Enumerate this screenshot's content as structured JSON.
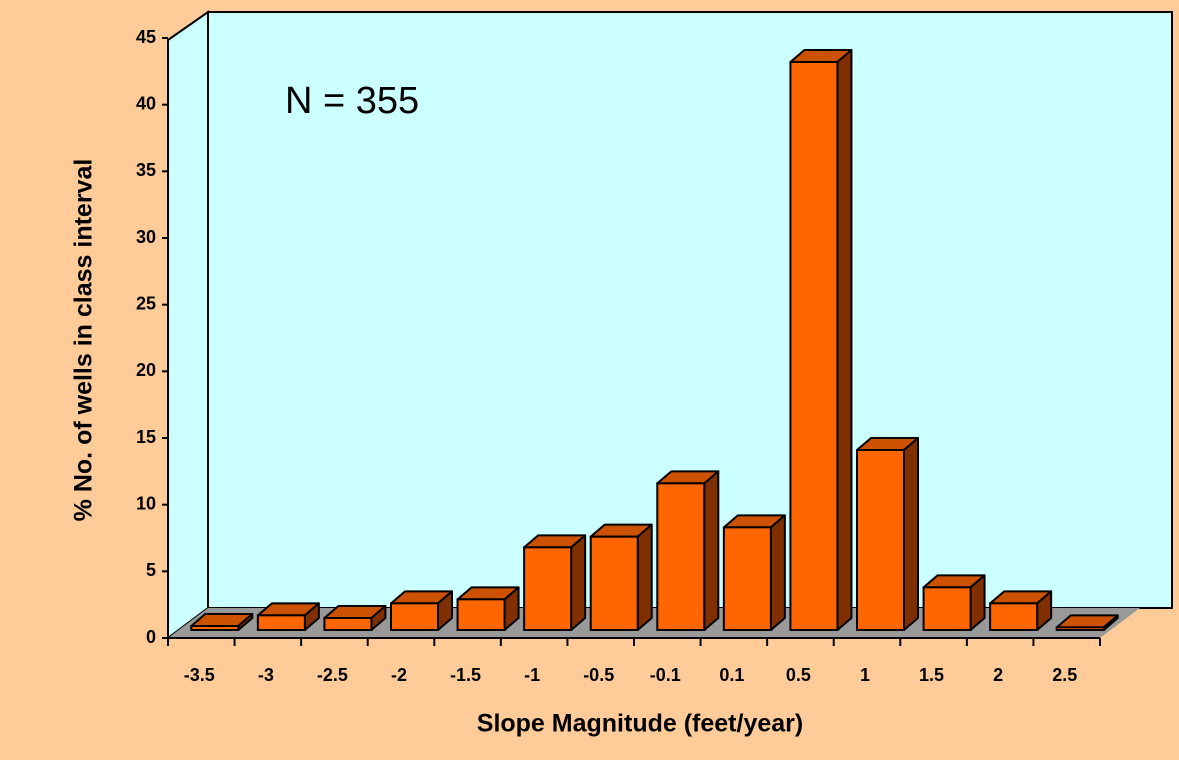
{
  "chart_data": {
    "type": "bar",
    "categories": [
      "-3.5",
      "-3",
      "-2.5",
      "-2",
      "-1.5",
      "-1",
      "-0.5",
      "-0.1",
      "0.1",
      "0.5",
      "1",
      "1.5",
      "2",
      "2.5"
    ],
    "values": [
      0.3,
      1.1,
      0.9,
      2.0,
      2.3,
      6.2,
      7.0,
      11.0,
      7.7,
      42.6,
      13.5,
      3.2,
      2.0,
      0.2
    ],
    "color": "#ff6600",
    "ylim": [
      0,
      45
    ],
    "yticks": [
      0,
      5,
      10,
      15,
      20,
      25,
      30,
      35,
      40,
      45
    ],
    "xlabel": "Slope Magnitude (feet/year)",
    "ylabel": "% No. of wells in class interval",
    "annotation": "N = 355"
  }
}
